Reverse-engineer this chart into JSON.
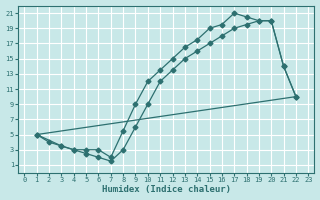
{
  "xlabel": "Humidex (Indice chaleur)",
  "bg_color": "#c8e8e8",
  "grid_color": "#ffffff",
  "line_color": "#2d7070",
  "xlim": [
    -0.5,
    23.5
  ],
  "ylim": [
    0,
    22
  ],
  "xticks": [
    0,
    1,
    2,
    3,
    4,
    5,
    6,
    7,
    8,
    9,
    10,
    11,
    12,
    13,
    14,
    15,
    16,
    17,
    18,
    19,
    20,
    21,
    22,
    23
  ],
  "yticks": [
    1,
    3,
    5,
    7,
    9,
    11,
    13,
    15,
    17,
    19,
    21
  ],
  "line1_x": [
    1,
    2,
    3,
    4,
    5,
    6,
    7,
    8,
    9,
    10,
    11,
    12,
    13,
    14,
    15,
    16,
    17,
    18,
    19,
    20,
    21,
    22
  ],
  "line1_y": [
    5,
    4,
    3.5,
    3,
    2.5,
    2,
    1.5,
    3,
    6,
    9,
    12,
    13.5,
    15,
    16,
    17,
    18,
    19,
    19.5,
    20,
    20,
    14,
    10
  ],
  "line2_x": [
    1,
    3,
    4,
    5,
    6,
    7,
    8,
    9,
    10,
    11,
    12,
    13,
    14,
    15,
    16,
    17,
    18,
    19,
    20,
    21,
    22
  ],
  "line2_y": [
    5,
    3.5,
    3,
    3,
    3,
    2,
    5.5,
    9,
    12,
    13.5,
    15,
    16.5,
    17.5,
    19,
    19.5,
    21,
    20.5,
    20,
    20,
    14,
    10
  ],
  "line3_x": [
    1,
    22
  ],
  "line3_y": [
    5,
    10
  ]
}
